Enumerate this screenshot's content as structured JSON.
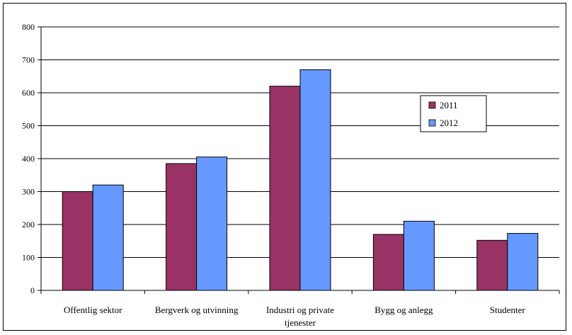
{
  "chart_data": {
    "type": "bar",
    "title": "",
    "xlabel": "",
    "ylabel": "",
    "ylim": [
      0,
      800
    ],
    "yticks": [
      0,
      100,
      200,
      300,
      400,
      500,
      600,
      700,
      800
    ],
    "grid": true,
    "legend_position": "right",
    "categories": [
      [
        "Offentlig sektor"
      ],
      [
        "Bergverk og utvinning"
      ],
      [
        "Industri og private",
        "tjenester"
      ],
      [
        "Bygg og anlegg"
      ],
      [
        "Studenter"
      ]
    ],
    "series": [
      {
        "name": "2011",
        "color": "#993366",
        "values": [
          300,
          385,
          620,
          170,
          152
        ]
      },
      {
        "name": "2012",
        "color": "#6699ff",
        "values": [
          320,
          405,
          670,
          210,
          173
        ]
      }
    ]
  }
}
